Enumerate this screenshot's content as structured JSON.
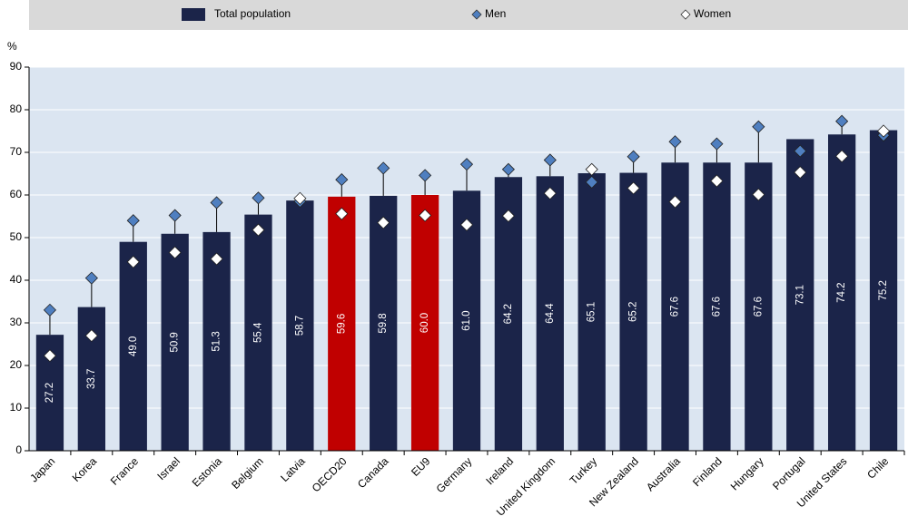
{
  "chart_data": {
    "type": "bar",
    "y_axis_label": "%",
    "categories": [
      "Japan",
      "Korea",
      "France",
      "Israel",
      "Estonia",
      "Belgium",
      "Latvia",
      "OECD20",
      "Canada",
      "EU9",
      "Germany",
      "Ireland",
      "United Kingdom",
      "Turkey",
      "New Zealand",
      "Australia",
      "Finland",
      "Hungary",
      "Portugal",
      "United States",
      "Chile"
    ],
    "series": [
      {
        "name": "Total population",
        "color": "#1b2449",
        "marker": "bar",
        "highlight_color": "#c00000",
        "highlight": [
          "OECD20",
          "EU9"
        ],
        "values": [
          27.2,
          33.7,
          49.0,
          50.9,
          51.3,
          55.4,
          58.7,
          59.6,
          59.8,
          60.0,
          61.0,
          64.2,
          64.4,
          65.1,
          65.2,
          67.6,
          67.6,
          67.6,
          73.1,
          74.2,
          75.2
        ],
        "value_labels": [
          "27.2",
          "33.7",
          "49.0",
          "50.9",
          "51.3",
          "55.4",
          "58.7",
          "59.6",
          "59.8",
          "60.0",
          "61.0",
          "64.2",
          "64.4",
          "65.1",
          "65.2",
          "67.6",
          "67.6",
          "67.6",
          "73.1",
          "74.2",
          "75.2"
        ]
      },
      {
        "name": "Men",
        "color": "#4f7fc0",
        "marker": "diamond",
        "values": [
          33,
          40.5,
          54,
          55.2,
          58.2,
          59.3,
          58.5,
          63.6,
          66.3,
          64.6,
          67.2,
          66,
          68.2,
          63,
          69,
          72.5,
          72,
          76,
          70.3,
          77.3,
          74
        ]
      },
      {
        "name": "Women",
        "color": "#ffffff",
        "marker": "diamond",
        "values": [
          22.3,
          27,
          44.3,
          46.5,
          45,
          51.8,
          59.2,
          55.6,
          53.5,
          55.2,
          53,
          55.1,
          60.4,
          66,
          61.6,
          58.4,
          63.3,
          60.1,
          65.3,
          69.1,
          75
        ]
      }
    ],
    "ylim": [
      0,
      90
    ],
    "yticks": [
      0,
      10,
      20,
      30,
      40,
      50,
      60,
      70,
      80,
      90
    ],
    "grid": true
  }
}
